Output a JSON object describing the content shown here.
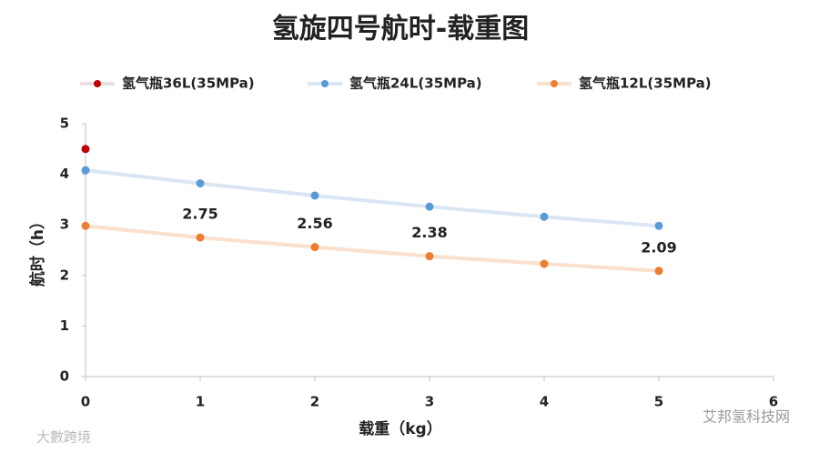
{
  "chart_data": {
    "type": "line",
    "title": "氢旋四号航时-载重图",
    "x_label": "载重（kg）",
    "y_label": "航时（h）",
    "x": [
      0,
      1,
      2,
      3,
      4,
      5
    ],
    "series": [
      {
        "name": "氢气瓶36L(35MPa)",
        "color": "#c00000",
        "line_color": "#eadfe0",
        "values": [
          4.5,
          null,
          null,
          null,
          null,
          null
        ]
      },
      {
        "name": "氢气瓶24L(35MPa)",
        "color": "#5b9bd5",
        "line_color": "#dae6f4",
        "values": [
          4.08,
          3.82,
          3.58,
          3.36,
          3.16,
          2.98
        ]
      },
      {
        "name": "氢气瓶12L(35MPa)",
        "color": "#ed7d31",
        "line_color": "#fbe0cd",
        "values": [
          2.98,
          2.75,
          2.56,
          2.38,
          2.23,
          2.09
        ],
        "value_labels": [
          null,
          "2.75",
          "2.56",
          "2.38",
          null,
          "2.09"
        ]
      }
    ],
    "xlim": [
      0,
      6
    ],
    "xticks": [
      0,
      1,
      2,
      3,
      4,
      5,
      6
    ],
    "ylim": [
      0,
      5
    ],
    "yticks": [
      0,
      1,
      2,
      3,
      4,
      5
    ],
    "grid": false,
    "legend": "top",
    "watermarks": [
      "大數跨境",
      "艾邦氢科技网"
    ]
  }
}
